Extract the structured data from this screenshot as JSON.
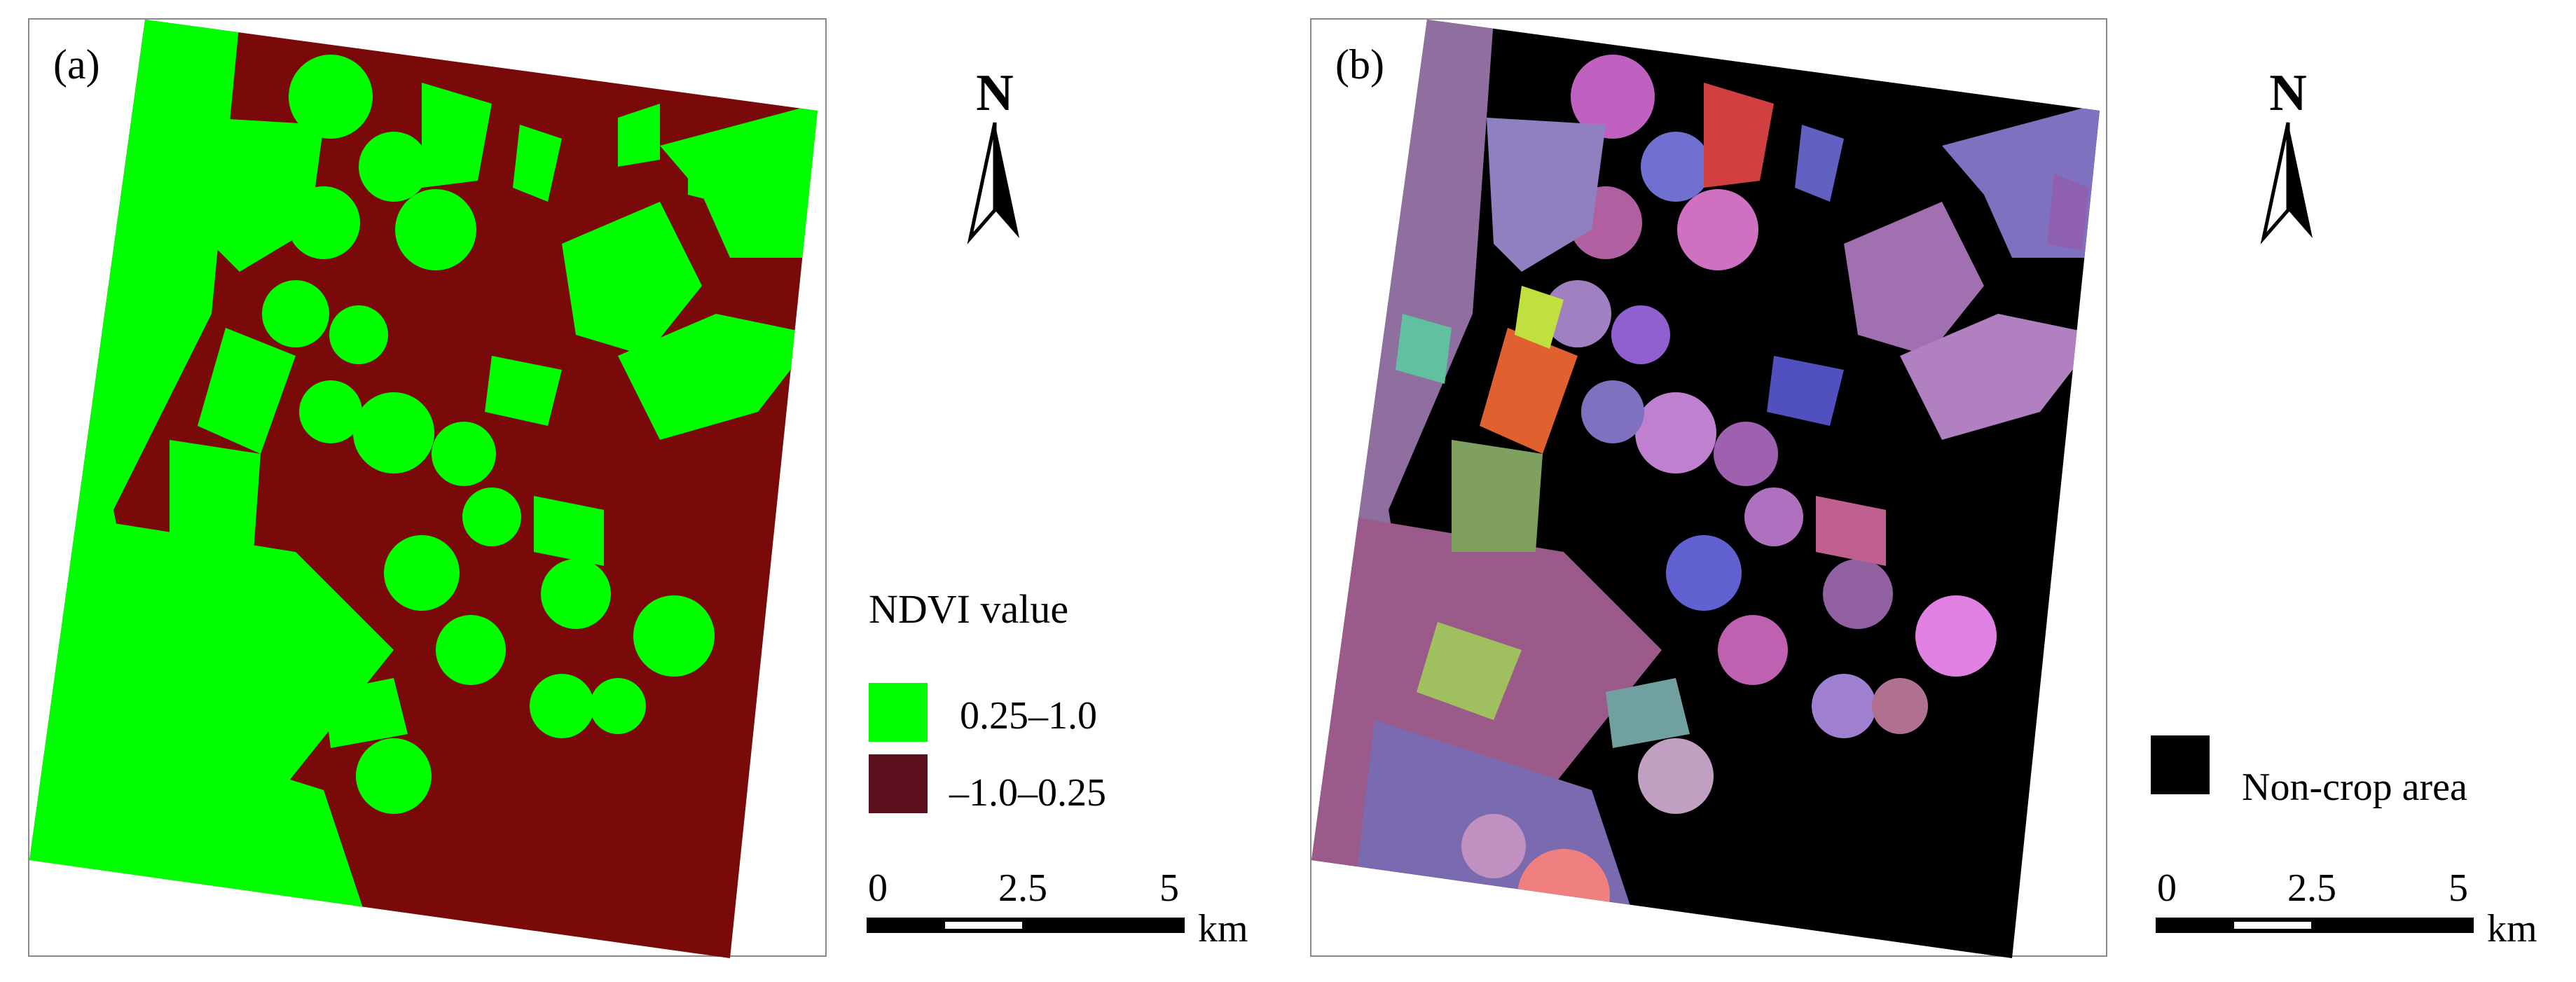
{
  "panels": [
    {
      "label": "(a)"
    },
    {
      "label": "(b)"
    }
  ],
  "north_arrow": {
    "letter": "N"
  },
  "legend_a": {
    "title": "NDVI value",
    "items": [
      {
        "label": "0.25–1.0",
        "color": "#00ff00"
      },
      {
        "label": "–1.0–0.25",
        "color": "#5c0f1c"
      }
    ]
  },
  "legend_b": {
    "items": [
      {
        "label": "Non-crop area",
        "color": "#000000"
      }
    ]
  },
  "scale_bar": {
    "ticks": [
      "0",
      "2.5",
      "5"
    ],
    "unit": "km"
  },
  "colors": {
    "crop_green": "#00ff00",
    "noncrop_maroon": "#7a0a0a",
    "background_black": "#000000"
  }
}
